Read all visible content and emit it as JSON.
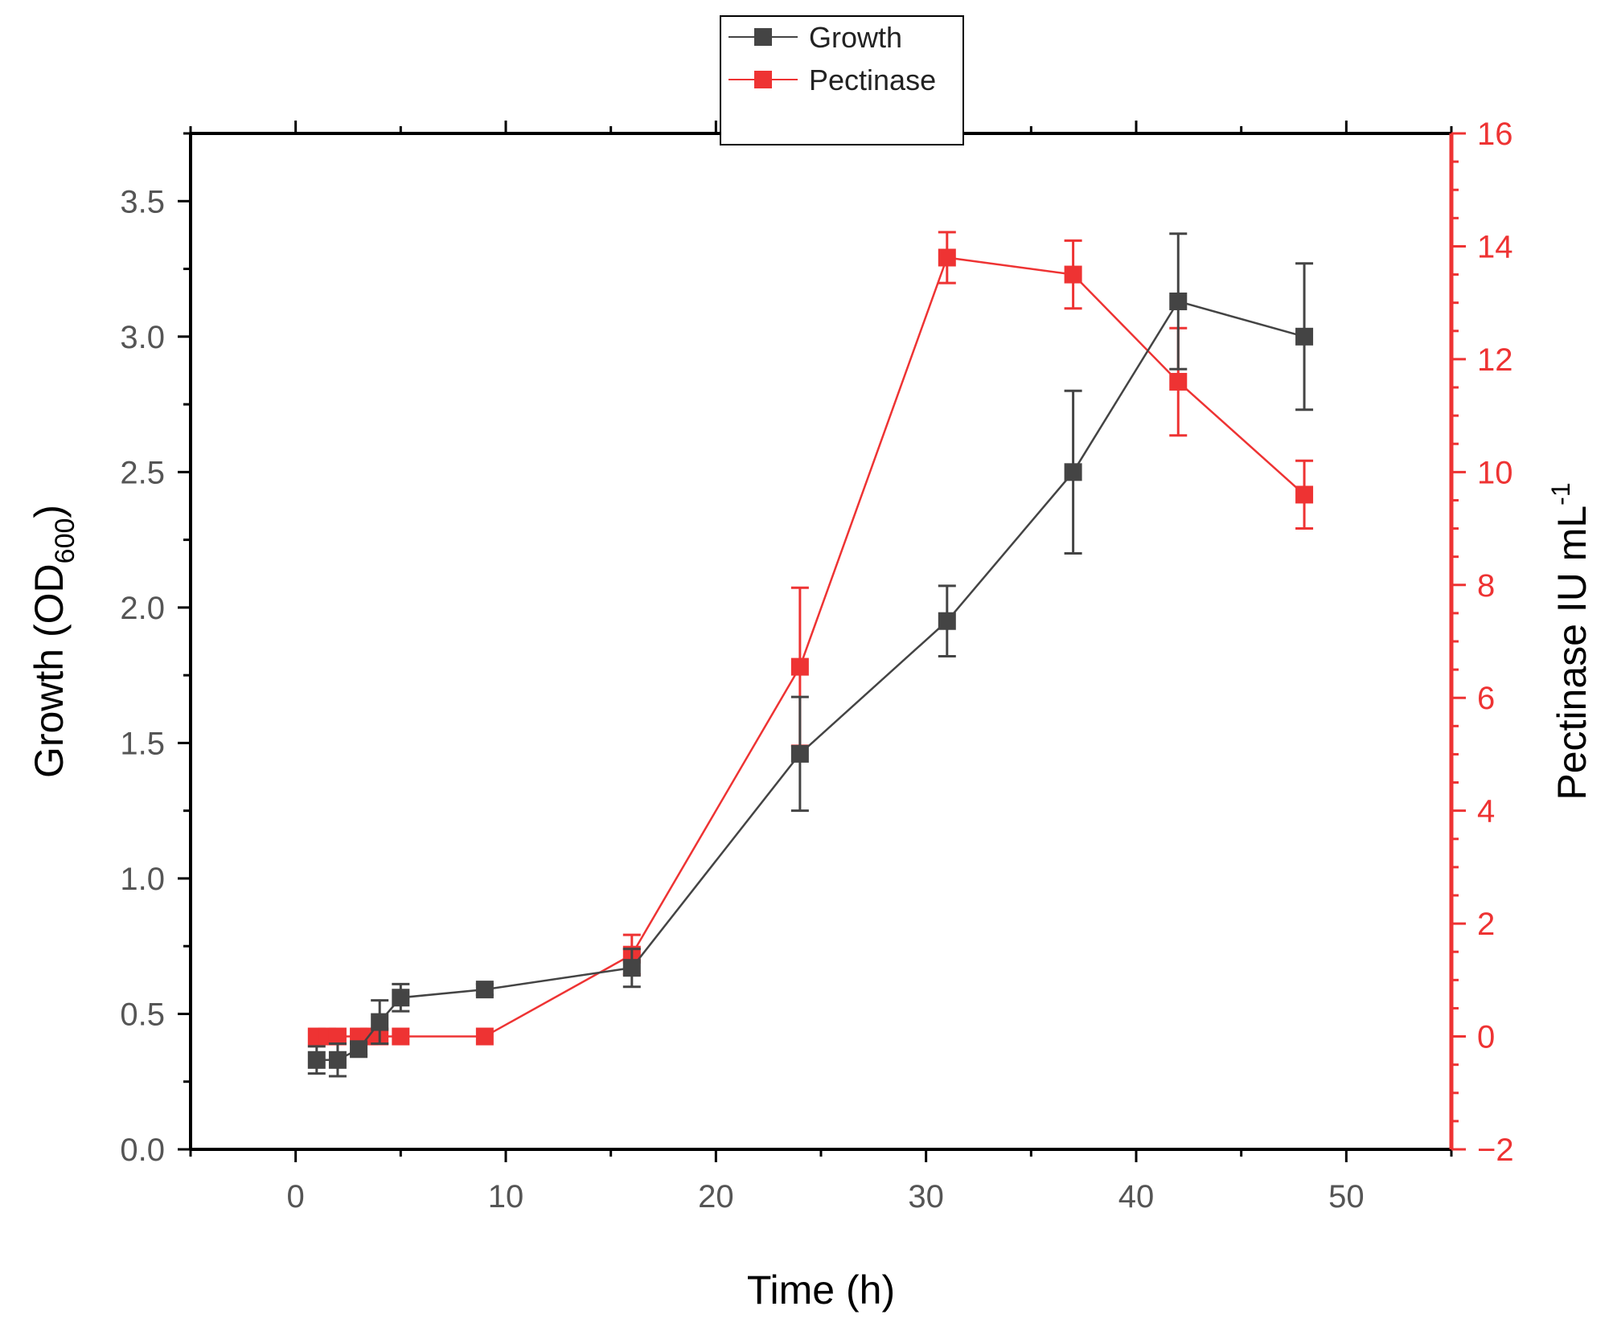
{
  "colors": {
    "growth": "#444444",
    "pectinase": "#ee3333",
    "left_axis": "#000000",
    "right_axis": "#ee3333",
    "tick_text": "#555555"
  },
  "chart_data": {
    "type": "line",
    "xlabel": "Time (h)",
    "ylabel_left": {
      "main": "Growth (OD",
      "sub": "600",
      "tail": ")"
    },
    "ylabel_right": {
      "main": "Pectinase IU mL",
      "sup": "-1"
    },
    "xlim": [
      -5,
      55
    ],
    "ylim_left": [
      0,
      3.75
    ],
    "ylim_right": [
      -2,
      16
    ],
    "x_ticks": [
      0,
      10,
      20,
      30,
      40,
      50
    ],
    "x_tick_labels": [
      "0",
      "10",
      "20",
      "30",
      "40",
      "50"
    ],
    "y_left_ticks": [
      0,
      0.5,
      1,
      1.5,
      2,
      2.5,
      3,
      3.5
    ],
    "y_left_tick_labels": [
      "0.0",
      "0.5",
      "1.0",
      "1.5",
      "2.0",
      "2.5",
      "3.0",
      "3.5"
    ],
    "y_right_ticks": [
      -2,
      0,
      2,
      4,
      6,
      8,
      10,
      12,
      14,
      16
    ],
    "y_right_tick_labels": [
      "−2",
      "0",
      "2",
      "4",
      "6",
      "8",
      "10",
      "12",
      "14",
      "16"
    ],
    "legend": {
      "position": "top-center",
      "entries": [
        "Growth",
        "Pectinase"
      ]
    },
    "series": [
      {
        "name": "Growth",
        "axis": "left",
        "x": [
          1,
          2,
          3,
          4,
          5,
          9,
          16,
          24,
          31,
          37,
          42,
          48
        ],
        "y": [
          0.33,
          0.33,
          0.37,
          0.47,
          0.56,
          0.59,
          0.67,
          1.46,
          1.95,
          2.5,
          3.13,
          3.0
        ],
        "err": [
          0.05,
          0.06,
          0.02,
          0.08,
          0.05,
          0.02,
          0.07,
          0.21,
          0.13,
          0.3,
          0.25,
          0.27
        ]
      },
      {
        "name": "Pectinase",
        "axis": "right",
        "x": [
          1,
          1.5,
          2,
          3,
          3.5,
          4,
          5,
          9,
          16,
          24,
          31,
          37,
          42,
          48
        ],
        "y": [
          0,
          0,
          0,
          0,
          0,
          0,
          0,
          0,
          1.45,
          6.55,
          13.8,
          13.5,
          11.6,
          9.6
        ],
        "err": [
          0,
          0,
          0,
          0,
          0,
          0,
          0,
          0,
          0.35,
          1.4,
          0.45,
          0.6,
          0.95,
          0.6
        ]
      }
    ]
  }
}
